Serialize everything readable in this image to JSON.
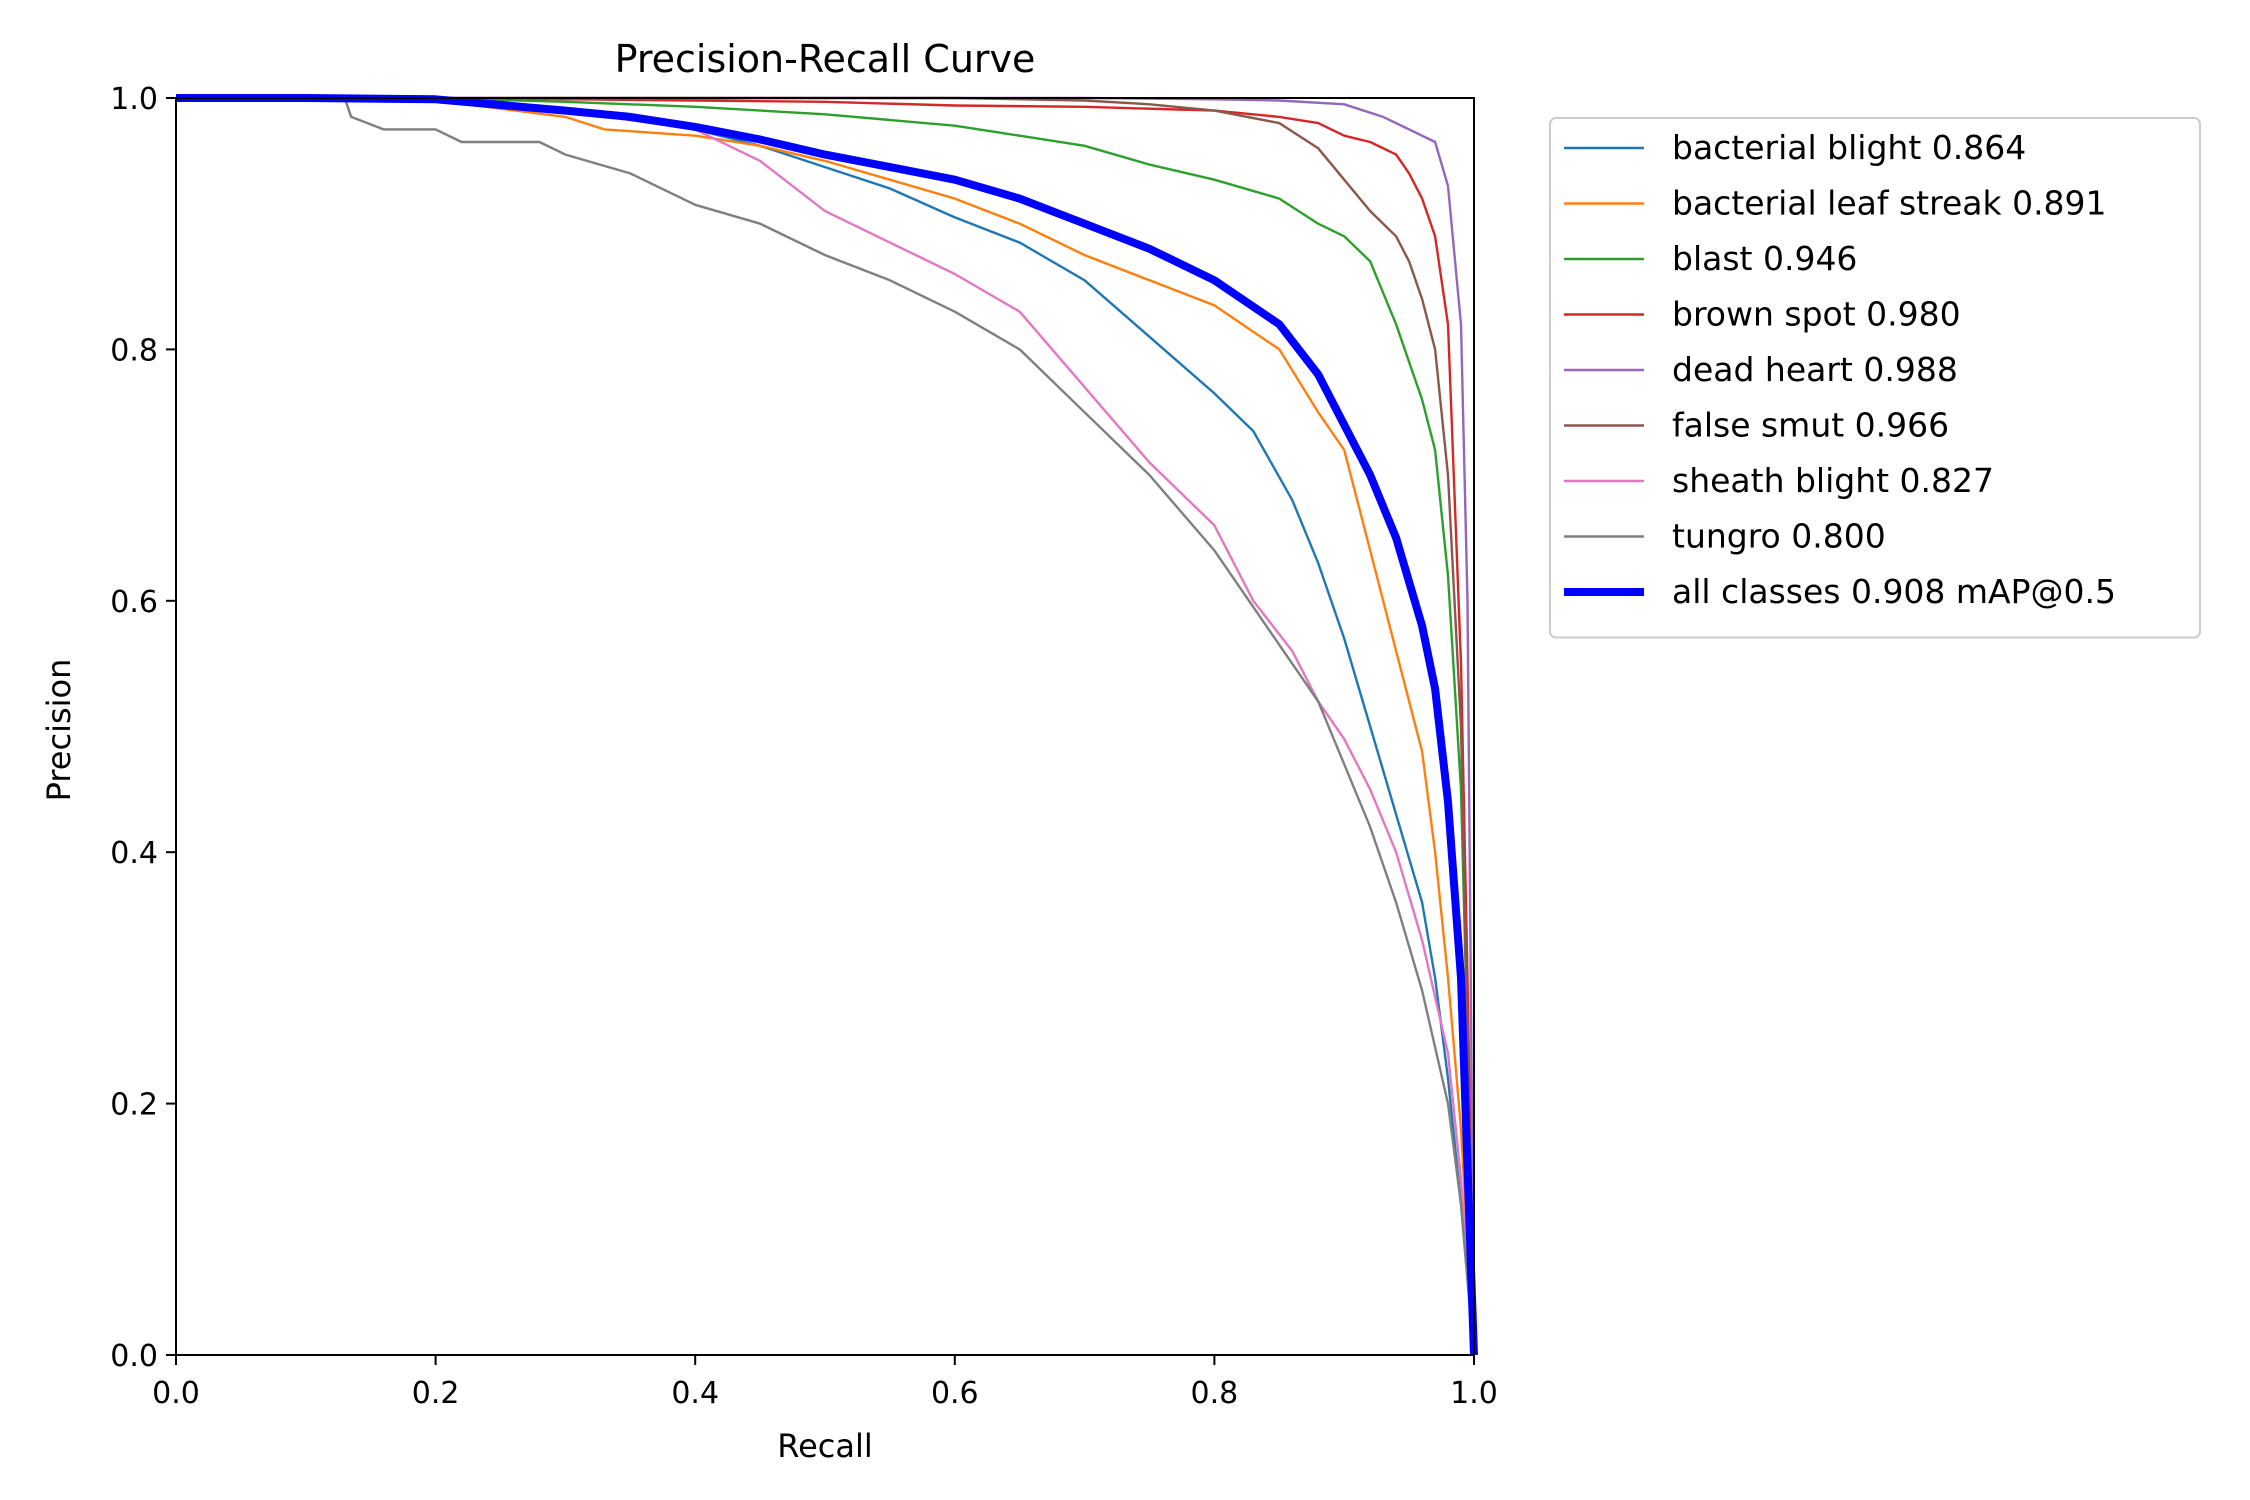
{
  "chart_data": {
    "type": "line",
    "title": "Precision-Recall Curve",
    "xlabel": "Recall",
    "ylabel": "Precision",
    "xlim": [
      0,
      1
    ],
    "ylim": [
      0,
      1
    ],
    "xticks": [
      "0.0",
      "0.2",
      "0.4",
      "0.6",
      "0.8",
      "1.0"
    ],
    "yticks": [
      "0.0",
      "0.2",
      "0.4",
      "0.6",
      "0.8",
      "1.0"
    ],
    "grid": false,
    "legend_position": "outside-upper-right",
    "series": [
      {
        "name": "bacterial blight 0.864",
        "color": "#1f77b4",
        "width": "thin",
        "x": [
          0,
          0.1,
          0.2,
          0.3,
          0.4,
          0.45,
          0.5,
          0.55,
          0.6,
          0.65,
          0.7,
          0.75,
          0.8,
          0.83,
          0.86,
          0.88,
          0.9,
          0.92,
          0.94,
          0.96,
          0.97,
          0.98,
          0.99,
          1.0
        ],
        "y": [
          1.0,
          1.0,
          0.998,
          0.99,
          0.975,
          0.962,
          0.945,
          0.928,
          0.905,
          0.885,
          0.855,
          0.81,
          0.765,
          0.735,
          0.68,
          0.63,
          0.57,
          0.5,
          0.43,
          0.36,
          0.3,
          0.22,
          0.12,
          0.0
        ]
      },
      {
        "name": "bacterial leaf streak 0.891",
        "color": "#ff7f0e",
        "width": "thin",
        "x": [
          0,
          0.1,
          0.2,
          0.3,
          0.33,
          0.4,
          0.45,
          0.5,
          0.55,
          0.6,
          0.65,
          0.7,
          0.75,
          0.8,
          0.85,
          0.88,
          0.9,
          0.92,
          0.94,
          0.96,
          0.97,
          0.98,
          0.99,
          1.0
        ],
        "y": [
          1.0,
          1.0,
          0.998,
          0.985,
          0.975,
          0.97,
          0.962,
          0.95,
          0.935,
          0.92,
          0.9,
          0.875,
          0.855,
          0.835,
          0.8,
          0.75,
          0.72,
          0.64,
          0.56,
          0.48,
          0.4,
          0.3,
          0.18,
          0.0
        ]
      },
      {
        "name": "blast 0.946",
        "color": "#2ca02c",
        "width": "thin",
        "x": [
          0,
          0.1,
          0.2,
          0.3,
          0.4,
          0.5,
          0.6,
          0.65,
          0.7,
          0.75,
          0.8,
          0.85,
          0.88,
          0.9,
          0.92,
          0.94,
          0.95,
          0.96,
          0.97,
          0.98,
          0.99,
          0.995,
          1.0
        ],
        "y": [
          1.0,
          1.0,
          1.0,
          0.997,
          0.993,
          0.987,
          0.978,
          0.97,
          0.962,
          0.947,
          0.935,
          0.92,
          0.9,
          0.89,
          0.87,
          0.82,
          0.79,
          0.76,
          0.72,
          0.62,
          0.45,
          0.25,
          0.0
        ]
      },
      {
        "name": "brown spot 0.980",
        "color": "#d62728",
        "width": "thin",
        "x": [
          0,
          0.2,
          0.4,
          0.5,
          0.6,
          0.7,
          0.8,
          0.85,
          0.88,
          0.9,
          0.92,
          0.94,
          0.95,
          0.96,
          0.97,
          0.98,
          0.99,
          0.995,
          1.0
        ],
        "y": [
          1.0,
          1.0,
          0.998,
          0.997,
          0.994,
          0.993,
          0.99,
          0.985,
          0.98,
          0.97,
          0.965,
          0.955,
          0.94,
          0.92,
          0.89,
          0.82,
          0.55,
          0.3,
          0.0
        ]
      },
      {
        "name": "dead heart 0.988",
        "color": "#9467bd",
        "width": "thin",
        "x": [
          0,
          0.3,
          0.5,
          0.7,
          0.8,
          0.85,
          0.9,
          0.93,
          0.95,
          0.97,
          0.98,
          0.99,
          0.995,
          1.0
        ],
        "y": [
          1.0,
          1.0,
          1.0,
          1.0,
          0.999,
          0.998,
          0.995,
          0.985,
          0.975,
          0.965,
          0.93,
          0.82,
          0.6,
          0.0
        ]
      },
      {
        "name": "false smut 0.966",
        "color": "#8c564b",
        "width": "thin",
        "x": [
          0,
          0.2,
          0.4,
          0.6,
          0.7,
          0.75,
          0.8,
          0.85,
          0.88,
          0.9,
          0.92,
          0.94,
          0.95,
          0.96,
          0.97,
          0.98,
          0.99,
          1.0
        ],
        "y": [
          1.0,
          1.0,
          1.0,
          1.0,
          0.998,
          0.995,
          0.99,
          0.98,
          0.96,
          0.935,
          0.91,
          0.89,
          0.87,
          0.84,
          0.8,
          0.7,
          0.5,
          0.0
        ]
      },
      {
        "name": "sheath blight 0.827",
        "color": "#e377c2",
        "width": "thin",
        "x": [
          0,
          0.1,
          0.2,
          0.3,
          0.4,
          0.45,
          0.5,
          0.55,
          0.6,
          0.65,
          0.7,
          0.75,
          0.8,
          0.83,
          0.86,
          0.88,
          0.9,
          0.92,
          0.94,
          0.96,
          0.98,
          0.99,
          1.0
        ],
        "y": [
          1.0,
          1.0,
          0.998,
          0.99,
          0.975,
          0.95,
          0.91,
          0.885,
          0.86,
          0.83,
          0.77,
          0.71,
          0.66,
          0.6,
          0.56,
          0.52,
          0.49,
          0.45,
          0.4,
          0.33,
          0.24,
          0.14,
          0.0
        ]
      },
      {
        "name": "tungro 0.800",
        "color": "#7f7f7f",
        "width": "thin",
        "x": [
          0,
          0.13,
          0.135,
          0.16,
          0.2,
          0.22,
          0.28,
          0.3,
          0.35,
          0.4,
          0.45,
          0.5,
          0.55,
          0.6,
          0.65,
          0.7,
          0.75,
          0.8,
          0.84,
          0.88,
          0.9,
          0.92,
          0.94,
          0.96,
          0.98,
          0.99,
          1.0
        ],
        "y": [
          1.0,
          1.0,
          0.985,
          0.975,
          0.975,
          0.965,
          0.965,
          0.955,
          0.94,
          0.915,
          0.9,
          0.875,
          0.855,
          0.83,
          0.8,
          0.75,
          0.7,
          0.64,
          0.58,
          0.52,
          0.47,
          0.42,
          0.36,
          0.29,
          0.2,
          0.12,
          0.0
        ]
      },
      {
        "name": "all classes 0.908 mAP@0.5",
        "color": "#0000ff",
        "width": "thick",
        "x": [
          0,
          0.1,
          0.2,
          0.3,
          0.35,
          0.4,
          0.45,
          0.5,
          0.55,
          0.6,
          0.65,
          0.7,
          0.75,
          0.8,
          0.85,
          0.88,
          0.9,
          0.92,
          0.94,
          0.96,
          0.97,
          0.98,
          0.99,
          1.0
        ],
        "y": [
          1.0,
          1.0,
          0.999,
          0.99,
          0.985,
          0.977,
          0.967,
          0.955,
          0.945,
          0.935,
          0.92,
          0.9,
          0.88,
          0.855,
          0.82,
          0.78,
          0.74,
          0.7,
          0.65,
          0.58,
          0.53,
          0.44,
          0.3,
          0.0
        ]
      }
    ]
  }
}
